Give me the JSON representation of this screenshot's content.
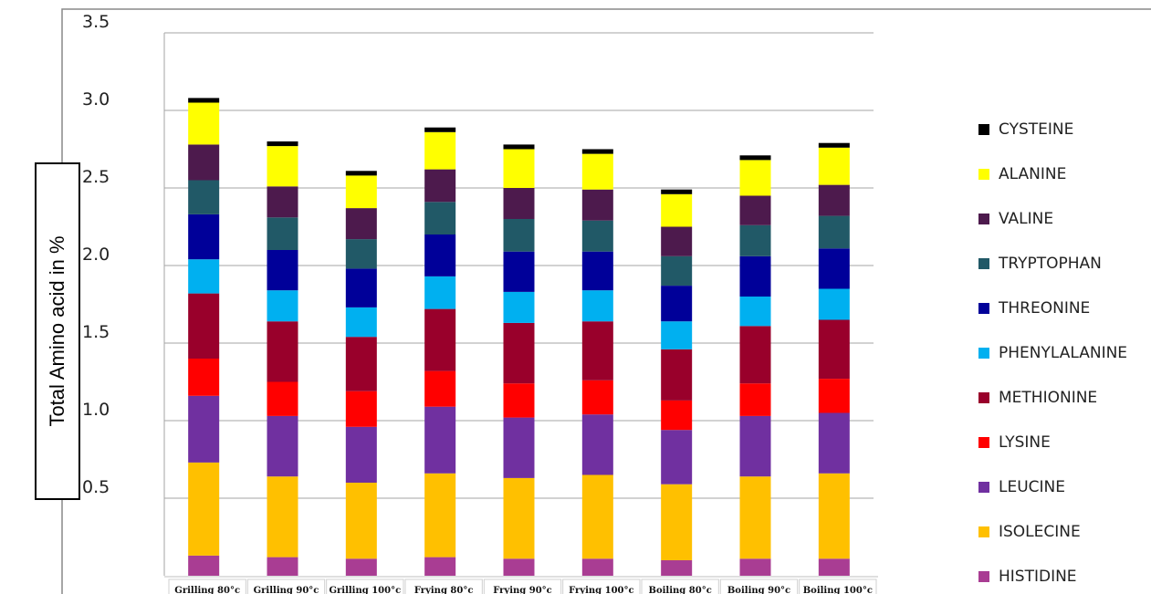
{
  "chart_data": {
    "type": "bar",
    "stacked": true,
    "ylabel": "Total Amino acid in %",
    "ylim": [
      0,
      3.5
    ],
    "yticks": [
      "0.5",
      "1.0",
      "1.5",
      "2.0",
      "2.5",
      "3.0",
      "3.5"
    ],
    "grid": true,
    "legend_position": "right",
    "categories": [
      "Grilling 80°c",
      "Grilling 90°c",
      "Grilling 100°c",
      "Frying 80°c",
      "Frying 90°c",
      "Frying 100°c",
      "Boiling 80°c",
      "Boiling 90°c",
      "Boiling 100°c"
    ],
    "series": [
      {
        "name": "HISTIDINE",
        "color": "#a93d93",
        "values": [
          0.13,
          0.12,
          0.11,
          0.12,
          0.11,
          0.11,
          0.1,
          0.11,
          0.11
        ]
      },
      {
        "name": "ISOLECINE",
        "color": "#ffc000",
        "values": [
          0.6,
          0.52,
          0.49,
          0.54,
          0.52,
          0.54,
          0.49,
          0.53,
          0.55
        ]
      },
      {
        "name": "LEUCINE",
        "color": "#7030a0",
        "values": [
          0.43,
          0.39,
          0.36,
          0.43,
          0.39,
          0.39,
          0.35,
          0.39,
          0.39
        ]
      },
      {
        "name": "LYSINE",
        "color": "#ff0000",
        "values": [
          0.24,
          0.22,
          0.23,
          0.23,
          0.22,
          0.22,
          0.19,
          0.21,
          0.22
        ]
      },
      {
        "name": "METHIONINE",
        "color": "#99002b",
        "values": [
          0.42,
          0.39,
          0.35,
          0.4,
          0.39,
          0.38,
          0.33,
          0.37,
          0.38
        ]
      },
      {
        "name": "PHENYLALANINE",
        "color": "#00b0f0",
        "values": [
          0.22,
          0.2,
          0.19,
          0.21,
          0.2,
          0.2,
          0.18,
          0.19,
          0.2
        ]
      },
      {
        "name": "THREONINE",
        "color": "#000099",
        "values": [
          0.29,
          0.26,
          0.25,
          0.27,
          0.26,
          0.25,
          0.23,
          0.26,
          0.26
        ]
      },
      {
        "name": "TRYPTOPHAN",
        "color": "#215967",
        "values": [
          0.22,
          0.21,
          0.19,
          0.21,
          0.21,
          0.2,
          0.19,
          0.2,
          0.21
        ]
      },
      {
        "name": "VALINE",
        "color": "#4d1a4d",
        "values": [
          0.23,
          0.2,
          0.2,
          0.21,
          0.2,
          0.2,
          0.19,
          0.19,
          0.2
        ]
      },
      {
        "name": "ALANINE",
        "color": "#ffff00",
        "values": [
          0.27,
          0.26,
          0.21,
          0.24,
          0.25,
          0.23,
          0.21,
          0.23,
          0.24
        ]
      },
      {
        "name": "CYSTEINE",
        "color": "#000000",
        "values": [
          0.03,
          0.03,
          0.03,
          0.03,
          0.03,
          0.03,
          0.03,
          0.03,
          0.03
        ]
      }
    ]
  }
}
